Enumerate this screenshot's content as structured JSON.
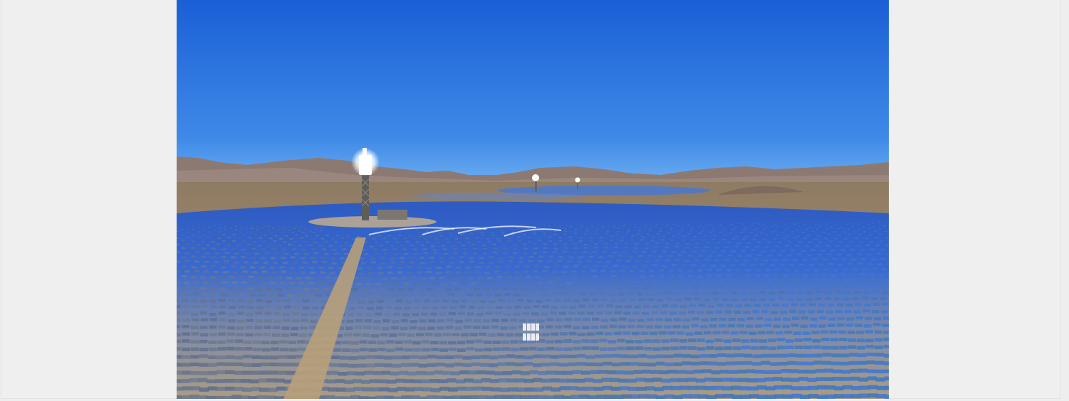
{
  "image": {
    "kind": "aerial photograph",
    "subject-icon": "solar-power-tower-icon"
  },
  "palette": {
    "page_background": "#efefef",
    "sky_top": "#1f66d8",
    "sky_horizon": "#5aa2ee",
    "mountains": "#8c7a72",
    "desert_ground": "#a58d6c",
    "mirror_blue": "#2f5fc4",
    "tower_glow": "#ffffff"
  }
}
